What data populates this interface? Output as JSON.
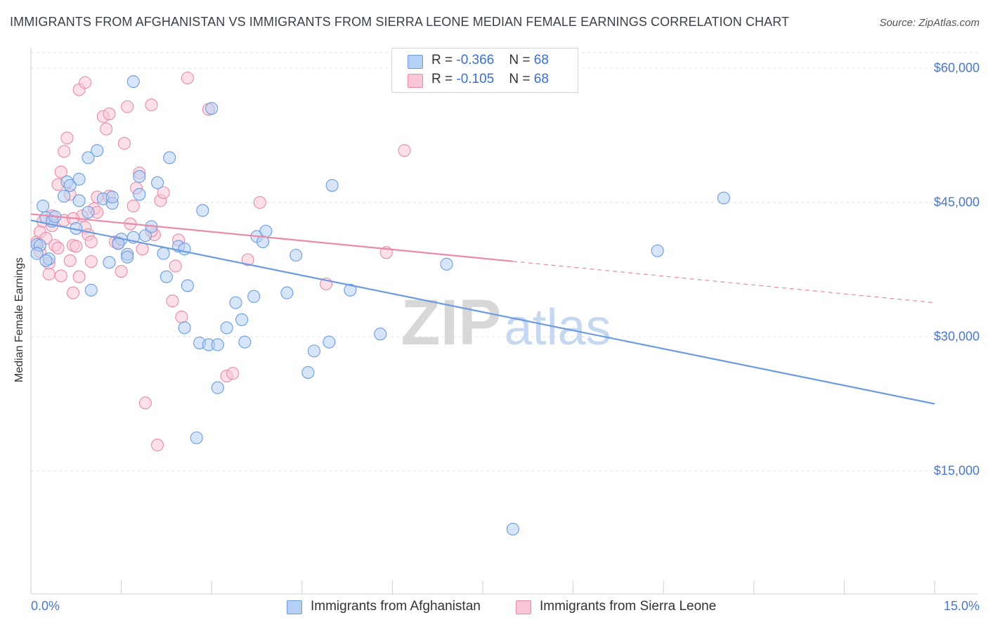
{
  "chart_data": {
    "type": "scatter",
    "title": "IMMIGRANTS FROM AFGHANISTAN VS IMMIGRANTS FROM SIERRA LEONE MEDIAN FEMALE EARNINGS CORRELATION CHART",
    "source": "Source: ZipAtlas.com",
    "xlabel": "",
    "ylabel": "Median Female Earnings",
    "xlim": [
      0,
      15
    ],
    "ylim": [
      0,
      62000
    ],
    "x_tick_labels": [
      "0.0%",
      "15.0%"
    ],
    "y_ticks": [
      {
        "value": 60000,
        "label": "$60,000"
      },
      {
        "value": 45000,
        "label": "$45,000"
      },
      {
        "value": 30000,
        "label": "$30,000"
      },
      {
        "value": 15000,
        "label": "$15,000"
      }
    ],
    "grid": true,
    "watermark": "ZIPatlas",
    "stats": [
      {
        "r_label": "R = ",
        "r_value": "-0.366",
        "n_label": "N = ",
        "n_value": "68",
        "color": "#6b9be0"
      },
      {
        "r_label": "R = ",
        "r_value": "-0.105",
        "n_label": "N = ",
        "n_value": "68",
        "color": "#e98aaa"
      }
    ],
    "series": [
      {
        "name": "Immigrants from Afghanistan",
        "color": "#6b9be0",
        "fill": "#b6cff4",
        "trend": {
          "x0": 0,
          "y0": 43000,
          "x1": 15,
          "y1": 22500,
          "solid_until": 15
        },
        "points": [
          [
            0.1,
            40300
          ],
          [
            0.15,
            40200
          ],
          [
            0.2,
            44600
          ],
          [
            0.25,
            43300
          ],
          [
            0.3,
            38700
          ],
          [
            0.35,
            42900
          ],
          [
            0.4,
            43400
          ],
          [
            0.6,
            47300
          ],
          [
            0.65,
            46900
          ],
          [
            0.55,
            45700
          ],
          [
            0.8,
            47600
          ],
          [
            0.8,
            45200
          ],
          [
            0.75,
            42100
          ],
          [
            0.95,
            43900
          ],
          [
            1.0,
            35200
          ],
          [
            0.95,
            50000
          ],
          [
            1.1,
            50800
          ],
          [
            1.2,
            45400
          ],
          [
            1.3,
            38300
          ],
          [
            1.35,
            44900
          ],
          [
            1.35,
            45600
          ],
          [
            1.5,
            40900
          ],
          [
            1.6,
            39200
          ],
          [
            1.6,
            38900
          ],
          [
            1.7,
            41100
          ],
          [
            1.7,
            58500
          ],
          [
            1.8,
            45900
          ],
          [
            1.8,
            47900
          ],
          [
            1.9,
            41300
          ],
          [
            2.1,
            47200
          ],
          [
            2.2,
            39300
          ],
          [
            2.25,
            36700
          ],
          [
            2.3,
            50000
          ],
          [
            2.45,
            40100
          ],
          [
            2.55,
            39800
          ],
          [
            2.55,
            31000
          ],
          [
            2.6,
            35700
          ],
          [
            2.75,
            18700
          ],
          [
            2.8,
            29300
          ],
          [
            2.85,
            44100
          ],
          [
            2.95,
            29100
          ],
          [
            3.0,
            55500
          ],
          [
            3.1,
            29100
          ],
          [
            3.1,
            24300
          ],
          [
            3.25,
            31000
          ],
          [
            3.4,
            33800
          ],
          [
            3.5,
            31900
          ],
          [
            3.55,
            29400
          ],
          [
            3.7,
            34500
          ],
          [
            3.75,
            41200
          ],
          [
            3.85,
            40600
          ],
          [
            3.9,
            41800
          ],
          [
            4.25,
            34900
          ],
          [
            4.4,
            39100
          ],
          [
            4.6,
            26000
          ],
          [
            4.7,
            28400
          ],
          [
            4.95,
            29400
          ],
          [
            5.0,
            46900
          ],
          [
            5.3,
            35200
          ],
          [
            5.8,
            30300
          ],
          [
            6.9,
            38100
          ],
          [
            8.0,
            8500
          ],
          [
            10.4,
            39600
          ],
          [
            11.5,
            45500
          ],
          [
            0.1,
            39300
          ],
          [
            0.25,
            38500
          ],
          [
            1.45,
            40400
          ],
          [
            2.0,
            42300
          ]
        ]
      },
      {
        "name": "Immigrants from Sierra Leone",
        "color": "#e98aaa",
        "fill": "#f8c6d6",
        "trend": {
          "x0": 0,
          "y0": 43700,
          "x1": 15,
          "y1": 33800,
          "solid_until": 8.0
        },
        "points": [
          [
            0.1,
            40600
          ],
          [
            0.15,
            41700
          ],
          [
            0.2,
            42900
          ],
          [
            0.25,
            41000
          ],
          [
            0.3,
            38200
          ],
          [
            0.3,
            37000
          ],
          [
            0.35,
            43500
          ],
          [
            0.4,
            40200
          ],
          [
            0.45,
            47000
          ],
          [
            0.45,
            39900
          ],
          [
            0.5,
            48400
          ],
          [
            0.55,
            50700
          ],
          [
            0.55,
            43000
          ],
          [
            0.6,
            52200
          ],
          [
            0.65,
            45900
          ],
          [
            0.7,
            40200
          ],
          [
            0.7,
            34900
          ],
          [
            0.75,
            40100
          ],
          [
            0.8,
            36700
          ],
          [
            0.85,
            43500
          ],
          [
            0.9,
            42200
          ],
          [
            0.95,
            41400
          ],
          [
            1.0,
            38400
          ],
          [
            1.05,
            44300
          ],
          [
            1.1,
            45600
          ],
          [
            1.2,
            54600
          ],
          [
            1.25,
            53200
          ],
          [
            1.3,
            54900
          ],
          [
            1.4,
            40600
          ],
          [
            1.45,
            40500
          ],
          [
            1.5,
            37300
          ],
          [
            1.55,
            51600
          ],
          [
            1.6,
            55700
          ],
          [
            1.65,
            42600
          ],
          [
            1.7,
            44600
          ],
          [
            1.75,
            46600
          ],
          [
            1.8,
            48300
          ],
          [
            1.85,
            39800
          ],
          [
            1.9,
            22600
          ],
          [
            2.0,
            55900
          ],
          [
            2.05,
            41400
          ],
          [
            2.1,
            17900
          ],
          [
            2.15,
            45200
          ],
          [
            2.2,
            46100
          ],
          [
            2.35,
            34000
          ],
          [
            2.4,
            37900
          ],
          [
            2.45,
            40800
          ],
          [
            2.5,
            32200
          ],
          [
            2.6,
            58900
          ],
          [
            2.95,
            55400
          ],
          [
            3.25,
            25600
          ],
          [
            3.35,
            25900
          ],
          [
            3.6,
            38600
          ],
          [
            3.8,
            45000
          ],
          [
            4.9,
            35900
          ],
          [
            5.9,
            39400
          ],
          [
            6.2,
            50800
          ],
          [
            0.8,
            57600
          ],
          [
            0.9,
            58400
          ],
          [
            0.15,
            39500
          ],
          [
            0.35,
            42400
          ],
          [
            0.65,
            38500
          ],
          [
            1.1,
            43900
          ],
          [
            1.3,
            45700
          ],
          [
            2.0,
            41800
          ],
          [
            0.5,
            36800
          ],
          [
            1.0,
            40600
          ],
          [
            0.7,
            43200
          ]
        ]
      }
    ]
  }
}
